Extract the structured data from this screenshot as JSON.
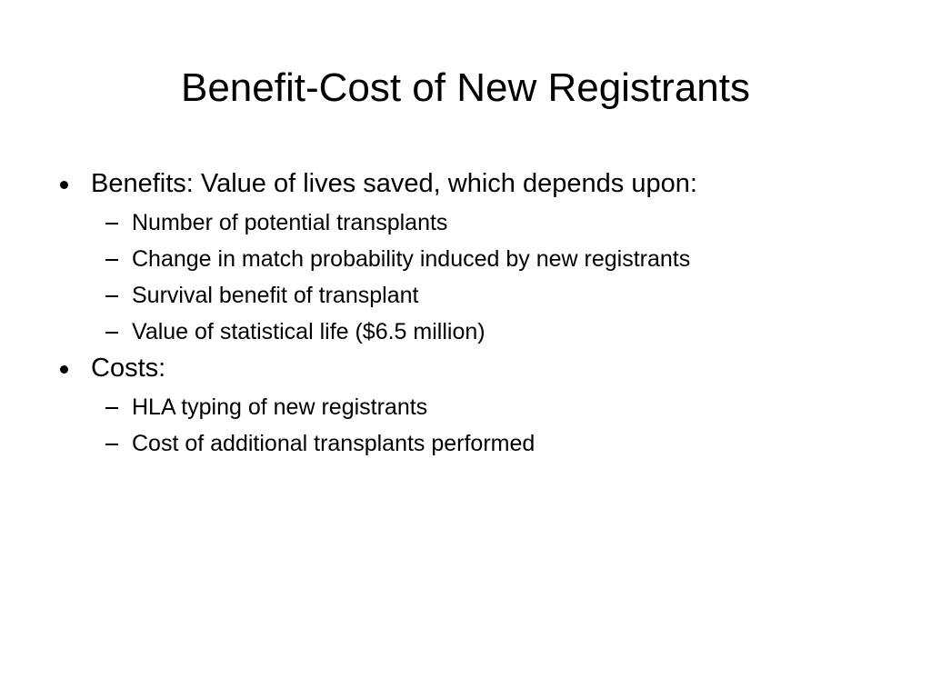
{
  "title": "Benefit-Cost of New Registrants",
  "bullets": [
    {
      "text": "Benefits: Value of lives saved, which depends upon:",
      "items": [
        "Number of potential transplants",
        "Change in match probability induced by new registrants",
        "Survival benefit of transplant",
        "Value of statistical life ($6.5 million)"
      ]
    },
    {
      "text": "Costs:",
      "items": [
        "HLA typing of new registrants",
        "Cost of additional transplants performed"
      ]
    }
  ]
}
